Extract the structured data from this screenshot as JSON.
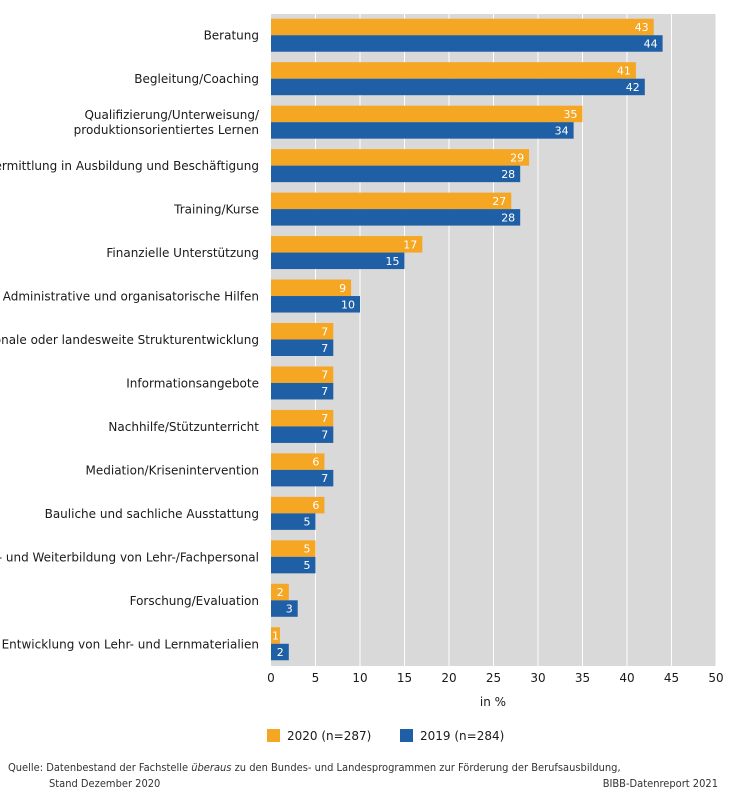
{
  "chart_data": {
    "type": "bar",
    "orientation": "horizontal",
    "categories": [
      "Beratung",
      "Begleitung/Coaching",
      "Qualifizierung/Unterweisung/\nproduktionsorientiertes Lernen",
      "Vermittlung in Ausbildung und Beschäftigung",
      "Training/Kurse",
      "Finanzielle Unterstützung",
      "Administrative und organisatorische Hilfen",
      "Regionale oder landesweite Strukturentwicklung",
      "Informationsangebote",
      "Nachhilfe/Stützunterricht",
      "Mediation/Krisenintervention",
      "Bauliche und sachliche Ausstattung",
      "Fort- und Weiterbildung von Lehr-/Fachpersonal",
      "Forschung/Evaluation",
      "Entwicklung von Lehr- und Lernmaterialien"
    ],
    "series": [
      {
        "name": "2020 (n=287)",
        "color": "#f5a623",
        "values": [
          43,
          41,
          35,
          29,
          27,
          17,
          9,
          7,
          7,
          7,
          6,
          6,
          5,
          2,
          1
        ]
      },
      {
        "name": "2019 (n=284)",
        "color": "#1f5fa6",
        "values": [
          44,
          42,
          34,
          28,
          28,
          15,
          10,
          7,
          7,
          7,
          7,
          5,
          5,
          3,
          2
        ]
      }
    ],
    "xlabel": "in %",
    "xlim": [
      0,
      50
    ],
    "xticks": [
      0,
      5,
      10,
      15,
      20,
      25,
      30,
      35,
      40,
      45,
      50
    ],
    "grid": true,
    "legend_position": "bottom"
  },
  "footer": {
    "source_prefix": "Quelle: Datenbestand der Fachstelle ",
    "source_italic": "überaus",
    "source_suffix": " zu den Bundes- und Landesprogrammen zur Förderung der Berufsausbildung,",
    "source_line2": "Stand Dezember 2020",
    "credit": "BIBB-Datenreport 2021"
  }
}
